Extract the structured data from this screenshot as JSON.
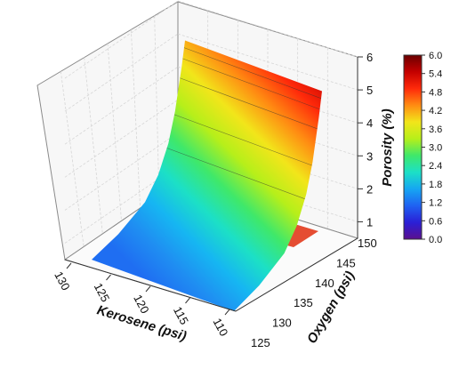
{
  "chart_data": {
    "type": "surface3d",
    "title": "",
    "zlabel": "Porosity (%)",
    "xlabel": "Kerosene (psi)",
    "ylabel": "Oxygen (psi)",
    "zlim": [
      0.5,
      6
    ],
    "xlim": [
      108,
      132
    ],
    "ylim": [
      122,
      150
    ],
    "x_ticks": [
      "130",
      "125",
      "120",
      "115",
      "110"
    ],
    "y_ticks": [
      "125",
      "130",
      "135",
      "140",
      "145",
      "150"
    ],
    "z_ticks": [
      "1",
      "2",
      "3",
      "4",
      "5",
      "6"
    ],
    "colorbar": {
      "min": 0.0,
      "max": 6.0,
      "ticks": [
        "0.0",
        "0.6",
        "1.2",
        "1.8",
        "2.4",
        "3.0",
        "3.6",
        "4.2",
        "4.8",
        "5.4",
        "6.0"
      ],
      "colors": [
        "#5b0f8f",
        "#2a1fd6",
        "#1f62f2",
        "#16a6f2",
        "#1ce0c6",
        "#3fe86a",
        "#b6ef1a",
        "#f2e51a",
        "#ff8c12",
        "#ff2a0a",
        "#c40000",
        "#6a0000"
      ]
    },
    "surface": {
      "oxygen": [
        122,
        130,
        138,
        142,
        145,
        147,
        149,
        150
      ],
      "porosity_at_oxygen": [
        1.5,
        1.6,
        1.9,
        2.4,
        3.1,
        3.9,
        5.1,
        5.8
      ]
    }
  }
}
